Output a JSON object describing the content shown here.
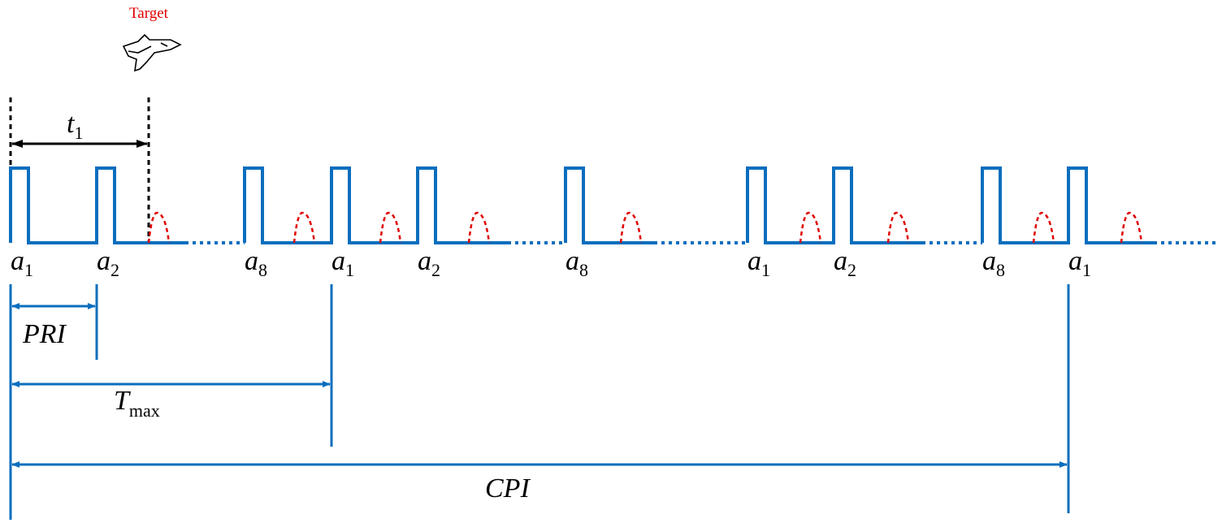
{
  "target_label": "Target",
  "target_icon": "fighter-jet-icon",
  "colors": {
    "signal": "#0a6ebd",
    "echo": "#e00000",
    "target_text": "#e00000",
    "marker": "#000000"
  },
  "t1": {
    "main": "t",
    "sub": "1"
  },
  "pulses": [
    {
      "main": "a",
      "sub": "1"
    },
    {
      "main": "a",
      "sub": "2"
    },
    {
      "main": "a",
      "sub": "8"
    },
    {
      "main": "a",
      "sub": "1"
    },
    {
      "main": "a",
      "sub": "2"
    },
    {
      "main": "a",
      "sub": "8"
    },
    {
      "main": "a",
      "sub": "1"
    },
    {
      "main": "a",
      "sub": "2"
    },
    {
      "main": "a",
      "sub": "8"
    },
    {
      "main": "a",
      "sub": "1"
    }
  ],
  "intervals": {
    "pri": "PRI",
    "tmax": {
      "main": "T",
      "sub": "max"
    },
    "cpi": "CPI"
  }
}
